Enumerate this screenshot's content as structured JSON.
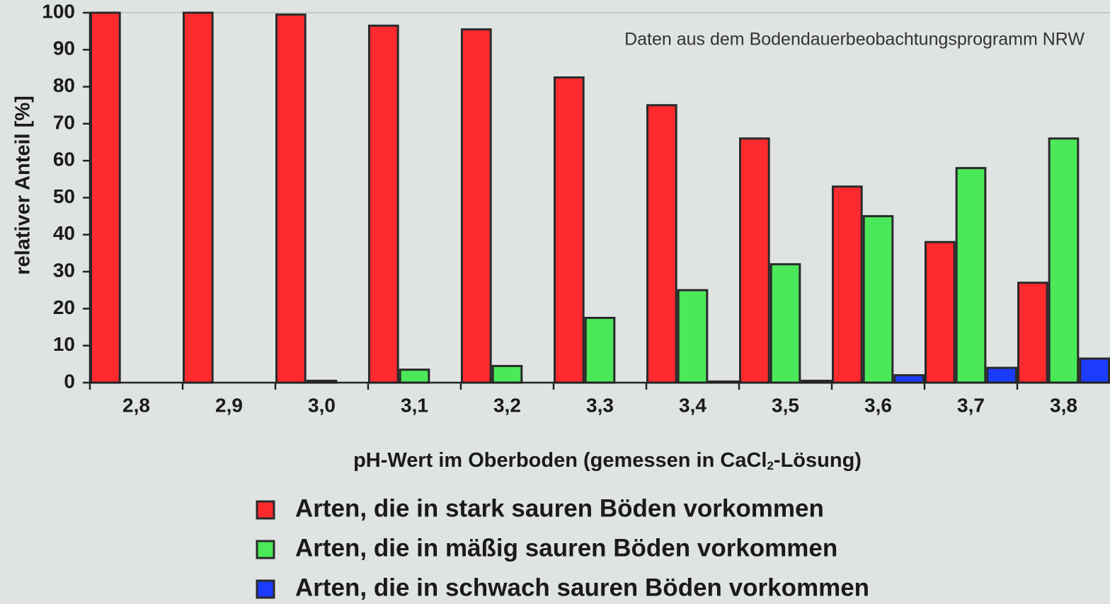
{
  "chart_data": {
    "type": "bar",
    "note": "Daten aus dem Bodendauerbeobachtungsprogramm NRW",
    "y_label": "relativer Anteil [%]",
    "x_label": [
      "pH-Wert im Oberboden (gemessen in CaCl",
      "2",
      "-Lösung)"
    ],
    "categories": [
      "2,8",
      "2,9",
      "3,0",
      "3,1",
      "3,2",
      "3,3",
      "3,4",
      "3,5",
      "3,6",
      "3,7",
      "3,8"
    ],
    "series": [
      {
        "name": "Arten, die in stark sauren Böden vorkommen",
        "color": "#ff2a2e",
        "values": [
          100,
          100,
          99.5,
          96.5,
          95.5,
          82.5,
          75,
          66,
          53,
          38,
          27
        ]
      },
      {
        "name": "Arten, die in mäßig sauren Böden vorkommen",
        "color": "#4be85a",
        "values": [
          0,
          0,
          0.5,
          3.5,
          4.5,
          17.5,
          25,
          32,
          45,
          58,
          66
        ]
      },
      {
        "name": "Arten, die in schwach sauren Böden vorkommen",
        "color": "#1b3cff",
        "values": [
          0,
          0,
          0,
          0,
          0,
          0,
          0.3,
          0.5,
          2,
          4,
          6.5
        ]
      }
    ],
    "ylim": [
      0,
      100
    ],
    "yticks": [
      0,
      10,
      20,
      30,
      40,
      50,
      60,
      70,
      80,
      90,
      100
    ],
    "grid": false
  }
}
